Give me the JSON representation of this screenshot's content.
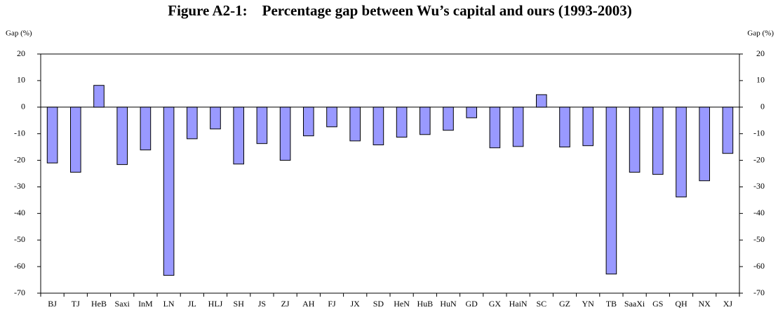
{
  "chart_data": {
    "type": "bar",
    "title": "Figure A2-1:    Percentage gap between Wu’s capital and ours (1993-2003)",
    "ylabel": "Gap (%)",
    "y2label": "Gap (%)",
    "categories": [
      "BJ",
      "TJ",
      "HeB",
      "Saxi",
      "InM",
      "LN",
      "JL",
      "HLJ",
      "SH",
      "JS",
      "ZJ",
      "AH",
      "FJ",
      "JX",
      "SD",
      "HeN",
      "HuB",
      "HuN",
      "GD",
      "GX",
      "HaiN",
      "SC",
      "GZ",
      "YN",
      "TB",
      "SaaXi",
      "GS",
      "QH",
      "NX",
      "XJ"
    ],
    "values": [
      -21,
      -24.5,
      8.2,
      -21.6,
      -16.1,
      -63.3,
      -11.9,
      -8.2,
      -21.4,
      -13.7,
      -20,
      -10.8,
      -7.4,
      -12.7,
      -14.2,
      -11.3,
      -10.3,
      -8.7,
      -4,
      -15.3,
      -14.8,
      4.7,
      -15,
      -14.5,
      -62.8,
      -24.5,
      -25.3,
      -33.8,
      -27.7,
      -17.4
    ],
    "color": "#9999ff",
    "ylim": [
      -70,
      20
    ],
    "yticks": [
      -70,
      -60,
      -50,
      -40,
      -30,
      -20,
      -10,
      0,
      10,
      20
    ],
    "y2lim": [
      -70,
      20
    ],
    "y2ticks": [
      -70,
      -60,
      -50,
      -40,
      -30,
      -20,
      -10,
      0,
      10,
      20
    ]
  }
}
